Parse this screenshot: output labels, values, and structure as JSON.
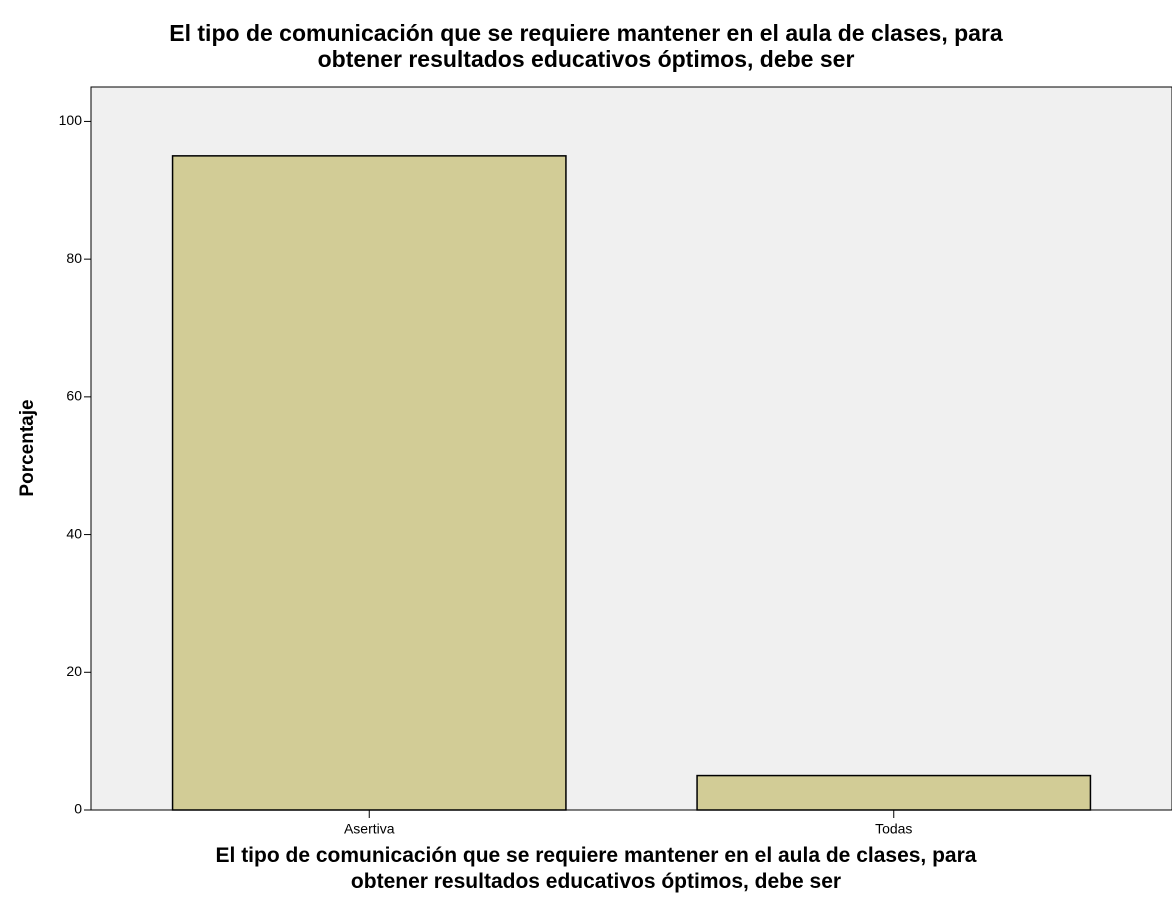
{
  "chart_data": {
    "type": "bar",
    "title": "El tipo de comunicación que se requiere mantener en el aula de clases, para\nobtener resultados educativos óptimos, debe ser",
    "x_label": "El tipo de comunicación que se requiere mantener en el aula de clases, para\nobtener resultados educativos óptimos, debe ser",
    "y_label": "Porcentaje",
    "categories": [
      "Asertiva",
      "Todas"
    ],
    "values": [
      95,
      5
    ],
    "color": "#d2cc96",
    "ylim": [
      0,
      105
    ],
    "yticks": [
      0,
      20,
      40,
      60,
      80,
      100
    ],
    "grid": false
  }
}
